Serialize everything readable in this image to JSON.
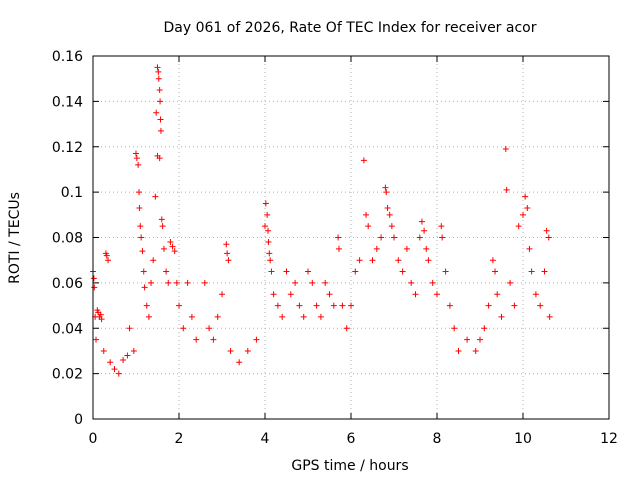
{
  "chart_data": {
    "type": "scatter",
    "title": "Day 061 of 2026, Rate Of TEC Index for receiver acor",
    "xlabel": "GPS time / hours",
    "ylabel": "ROTI / TECUs",
    "xlim": [
      0,
      12
    ],
    "ylim": [
      0,
      0.16
    ],
    "xticks": [
      0,
      2,
      4,
      6,
      8,
      10,
      12
    ],
    "yticks": [
      0,
      0.02,
      0.04,
      0.06,
      0.08,
      0.1,
      0.12,
      0.14,
      0.16
    ],
    "xtick_labels": [
      "0",
      "2",
      "4",
      "6",
      "8",
      "10",
      "12"
    ],
    "ytick_labels": [
      "0",
      "0.02",
      "0.04",
      "0.06",
      "0.08",
      "0.1",
      "0.12",
      "0.14",
      "0.16"
    ],
    "grid": true,
    "marker": "+",
    "color": "#ff0000",
    "series": [
      {
        "name": "ROTI",
        "points": [
          [
            0.0,
            0.065
          ],
          [
            0.02,
            0.062
          ],
          [
            0.03,
            0.058
          ],
          [
            0.05,
            0.045
          ],
          [
            0.07,
            0.035
          ],
          [
            0.1,
            0.048
          ],
          [
            0.12,
            0.047
          ],
          [
            0.15,
            0.045
          ],
          [
            0.18,
            0.046
          ],
          [
            0.2,
            0.044
          ],
          [
            0.25,
            0.03
          ],
          [
            0.3,
            0.073
          ],
          [
            0.32,
            0.072
          ],
          [
            0.35,
            0.07
          ],
          [
            0.4,
            0.025
          ],
          [
            0.5,
            0.022
          ],
          [
            0.6,
            0.02
          ],
          [
            0.7,
            0.026
          ],
          [
            0.8,
            0.028
          ],
          [
            0.85,
            0.04
          ],
          [
            0.95,
            0.03
          ],
          [
            1.0,
            0.117
          ],
          [
            1.02,
            0.115
          ],
          [
            1.05,
            0.112
          ],
          [
            1.07,
            0.1
          ],
          [
            1.08,
            0.093
          ],
          [
            1.1,
            0.085
          ],
          [
            1.12,
            0.08
          ],
          [
            1.15,
            0.074
          ],
          [
            1.18,
            0.065
          ],
          [
            1.2,
            0.058
          ],
          [
            1.25,
            0.05
          ],
          [
            1.3,
            0.045
          ],
          [
            1.35,
            0.06
          ],
          [
            1.4,
            0.07
          ],
          [
            1.45,
            0.098
          ],
          [
            1.47,
            0.135
          ],
          [
            1.5,
            0.155
          ],
          [
            1.52,
            0.153
          ],
          [
            1.53,
            0.15
          ],
          [
            1.55,
            0.145
          ],
          [
            1.56,
            0.14
          ],
          [
            1.57,
            0.132
          ],
          [
            1.58,
            0.127
          ],
          [
            1.5,
            0.116
          ],
          [
            1.55,
            0.115
          ],
          [
            1.6,
            0.088
          ],
          [
            1.62,
            0.085
          ],
          [
            1.65,
            0.075
          ],
          [
            1.7,
            0.065
          ],
          [
            1.75,
            0.06
          ],
          [
            1.8,
            0.078
          ],
          [
            1.85,
            0.076
          ],
          [
            1.9,
            0.074
          ],
          [
            1.95,
            0.06
          ],
          [
            2.0,
            0.05
          ],
          [
            2.1,
            0.04
          ],
          [
            2.2,
            0.06
          ],
          [
            2.3,
            0.045
          ],
          [
            2.4,
            0.035
          ],
          [
            2.6,
            0.06
          ],
          [
            2.7,
            0.04
          ],
          [
            2.8,
            0.035
          ],
          [
            2.9,
            0.045
          ],
          [
            3.0,
            0.055
          ],
          [
            3.1,
            0.077
          ],
          [
            3.12,
            0.073
          ],
          [
            3.15,
            0.07
          ],
          [
            3.2,
            0.03
          ],
          [
            3.4,
            0.025
          ],
          [
            3.6,
            0.03
          ],
          [
            3.8,
            0.035
          ],
          [
            4.0,
            0.085
          ],
          [
            4.02,
            0.095
          ],
          [
            4.05,
            0.09
          ],
          [
            4.07,
            0.083
          ],
          [
            4.08,
            0.078
          ],
          [
            4.1,
            0.073
          ],
          [
            4.12,
            0.07
          ],
          [
            4.15,
            0.065
          ],
          [
            4.2,
            0.055
          ],
          [
            4.3,
            0.05
          ],
          [
            4.4,
            0.045
          ],
          [
            4.5,
            0.065
          ],
          [
            4.6,
            0.055
          ],
          [
            4.7,
            0.06
          ],
          [
            4.8,
            0.05
          ],
          [
            4.9,
            0.045
          ],
          [
            5.0,
            0.065
          ],
          [
            5.1,
            0.06
          ],
          [
            5.2,
            0.05
          ],
          [
            5.3,
            0.045
          ],
          [
            5.4,
            0.06
          ],
          [
            5.5,
            0.055
          ],
          [
            5.6,
            0.05
          ],
          [
            5.7,
            0.08
          ],
          [
            5.72,
            0.075
          ],
          [
            5.8,
            0.05
          ],
          [
            5.9,
            0.04
          ],
          [
            6.0,
            0.05
          ],
          [
            6.1,
            0.065
          ],
          [
            6.2,
            0.07
          ],
          [
            6.3,
            0.114
          ],
          [
            6.35,
            0.09
          ],
          [
            6.4,
            0.085
          ],
          [
            6.5,
            0.07
          ],
          [
            6.6,
            0.075
          ],
          [
            6.7,
            0.08
          ],
          [
            6.8,
            0.102
          ],
          [
            6.82,
            0.1
          ],
          [
            6.85,
            0.093
          ],
          [
            6.9,
            0.09
          ],
          [
            6.95,
            0.085
          ],
          [
            7.0,
            0.08
          ],
          [
            7.1,
            0.07
          ],
          [
            7.2,
            0.065
          ],
          [
            7.3,
            0.075
          ],
          [
            7.4,
            0.06
          ],
          [
            7.5,
            0.055
          ],
          [
            7.6,
            0.08
          ],
          [
            7.65,
            0.087
          ],
          [
            7.7,
            0.083
          ],
          [
            7.75,
            0.075
          ],
          [
            7.8,
            0.07
          ],
          [
            7.9,
            0.06
          ],
          [
            8.0,
            0.055
          ],
          [
            8.1,
            0.085
          ],
          [
            8.12,
            0.08
          ],
          [
            8.2,
            0.065
          ],
          [
            8.3,
            0.05
          ],
          [
            8.4,
            0.04
          ],
          [
            8.5,
            0.03
          ],
          [
            8.7,
            0.035
          ],
          [
            8.9,
            0.03
          ],
          [
            9.0,
            0.035
          ],
          [
            9.1,
            0.04
          ],
          [
            9.2,
            0.05
          ],
          [
            9.3,
            0.07
          ],
          [
            9.35,
            0.065
          ],
          [
            9.4,
            0.055
          ],
          [
            9.5,
            0.045
          ],
          [
            9.6,
            0.119
          ],
          [
            9.62,
            0.101
          ],
          [
            9.7,
            0.06
          ],
          [
            9.8,
            0.05
          ],
          [
            9.9,
            0.085
          ],
          [
            10.0,
            0.09
          ],
          [
            10.05,
            0.098
          ],
          [
            10.1,
            0.093
          ],
          [
            10.15,
            0.075
          ],
          [
            10.2,
            0.065
          ],
          [
            10.3,
            0.055
          ],
          [
            10.4,
            0.05
          ],
          [
            10.5,
            0.065
          ],
          [
            10.55,
            0.083
          ],
          [
            10.6,
            0.08
          ],
          [
            10.62,
            0.045
          ]
        ]
      }
    ]
  }
}
